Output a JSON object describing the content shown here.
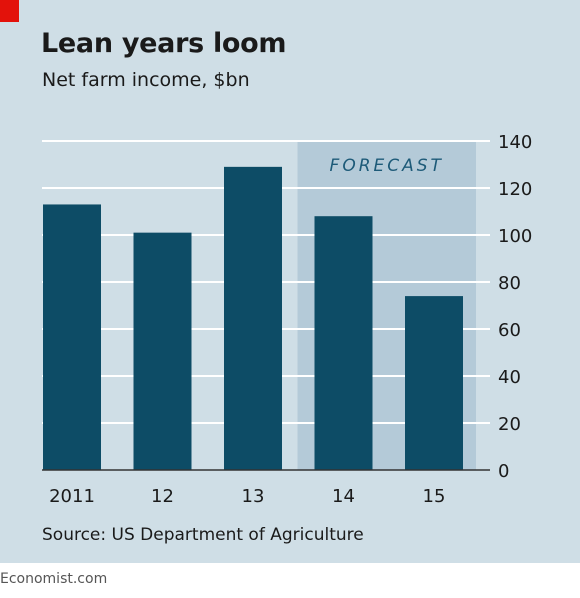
{
  "chart_data": {
    "type": "bar",
    "title": "Lean years loom",
    "subtitle": "Net farm income, $bn",
    "categories": [
      "2011",
      "12",
      "13",
      "14",
      "15"
    ],
    "values": [
      113,
      101,
      129,
      108,
      74
    ],
    "ylim": [
      0,
      140
    ],
    "yticks": [
      0,
      20,
      40,
      60,
      80,
      100,
      120,
      140
    ],
    "y_axis_side": "right",
    "grid": true,
    "forecast_label": "FORECAST",
    "forecast_categories": [
      "14",
      "15"
    ],
    "source": "Source: US Department of Agriculture"
  },
  "colors": {
    "panel_background": "#cfdee6",
    "forecast_shade": "#b4cad8",
    "bar": "#0d4c66",
    "accent_red": "#e3120b",
    "gridline": "#ffffff"
  },
  "brand": "Economist.com"
}
